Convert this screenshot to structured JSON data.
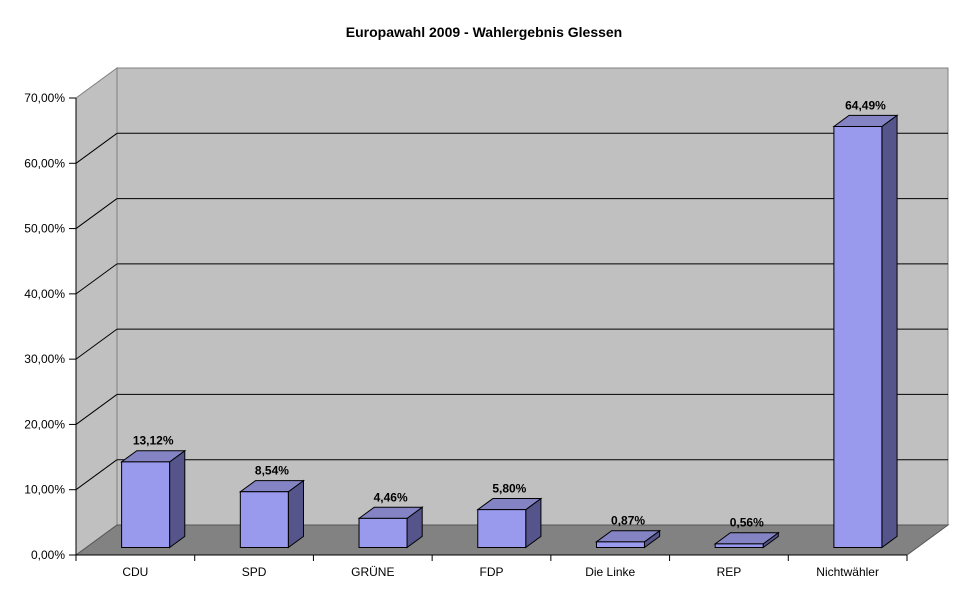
{
  "chart_data": {
    "type": "bar",
    "style": "3d-column",
    "title": "Europawahl 2009 - Wahlergebnis Glessen",
    "categories": [
      "CDU",
      "SPD",
      "GRÜNE",
      "FDP",
      "Die Linke",
      "REP",
      "Nichtwähler"
    ],
    "values": [
      13.12,
      8.54,
      4.46,
      5.8,
      0.87,
      0.56,
      64.49
    ],
    "data_labels": [
      "13,12%",
      "8,54%",
      "4,46%",
      "5,80%",
      "0,87%",
      "0,56%",
      "64,49%"
    ],
    "y_tick_labels": [
      "0,00%",
      "10,00%",
      "20,00%",
      "30,00%",
      "40,00%",
      "50,00%",
      "60,00%",
      "70,00%"
    ],
    "ylim": [
      0,
      70
    ],
    "y_step": 10,
    "grid": true,
    "legend": "none",
    "xlabel": "",
    "ylabel": "",
    "colors": {
      "bar_front": "#9999EE",
      "bar_top": "#8484C4",
      "bar_side": "#55558C",
      "wall": "#C0C0C0",
      "floor": "#828282",
      "wall_edge": "#808080",
      "gridline": "#000000",
      "axis": "#000000",
      "text": "#000000",
      "background": "#FFFFFF"
    }
  }
}
